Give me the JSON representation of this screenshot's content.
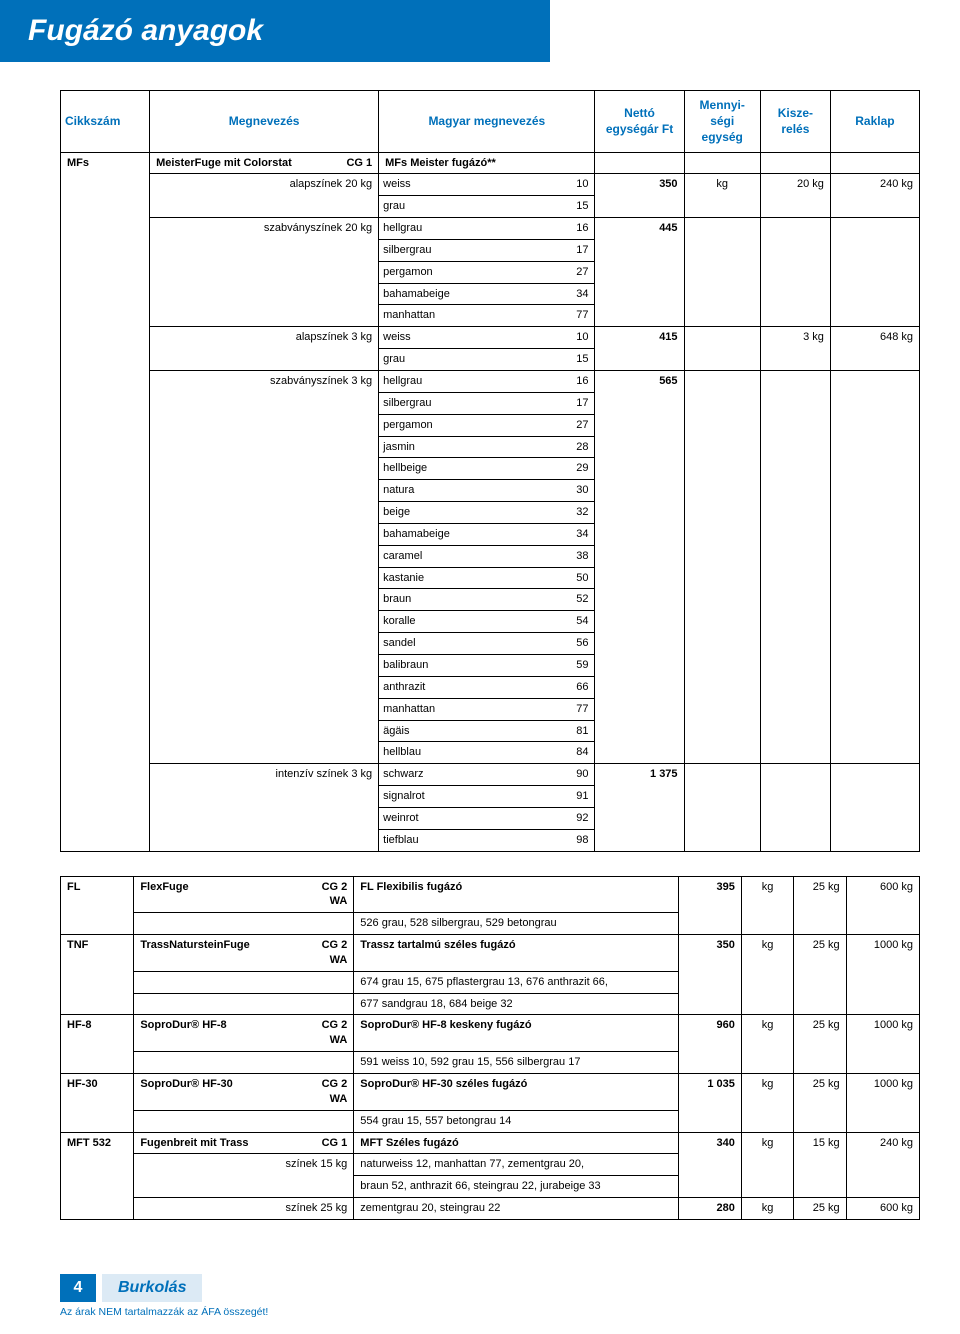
{
  "title": "Fugázó anyagok",
  "headers": {
    "cikkszam": "Cikkszám",
    "megnevezes": "Megnevezés",
    "magyar": "Magyar megnevezés",
    "netto": "Nettó egységár Ft",
    "mennyiseg": "Mennyi-ségi egység",
    "kiszereles": "Kisze-relés",
    "raklap": "Raklap"
  },
  "table1": {
    "code": "MFs",
    "nameA": "MeisterFuge mit Colorstat",
    "nameB": "CG 1",
    "huName": "MFs Meister fugázó**",
    "groups": [
      {
        "label": "alapszínek 20 kg",
        "price": "350",
        "unit": "kg",
        "pack": "20 kg",
        "pallet": "240 kg",
        "rows": [
          {
            "name": "weiss",
            "num": "10"
          },
          {
            "name": "grau",
            "num": "15"
          }
        ]
      },
      {
        "label": "szabványszínek 20 kg",
        "price": "445",
        "unit": "",
        "pack": "",
        "pallet": "",
        "rows": [
          {
            "name": "hellgrau",
            "num": "16"
          },
          {
            "name": "silbergrau",
            "num": "17"
          },
          {
            "name": "pergamon",
            "num": "27"
          },
          {
            "name": "bahamabeige",
            "num": "34"
          },
          {
            "name": "manhattan",
            "num": "77"
          }
        ]
      },
      {
        "label": "alapszínek 3 kg",
        "price": "415",
        "unit": "",
        "pack": "3 kg",
        "pallet": "648 kg",
        "rows": [
          {
            "name": "weiss",
            "num": "10"
          },
          {
            "name": "grau",
            "num": "15"
          }
        ]
      },
      {
        "label": "szabványszínek 3 kg",
        "price": "565",
        "unit": "",
        "pack": "",
        "pallet": "",
        "rows": [
          {
            "name": "hellgrau",
            "num": "16"
          },
          {
            "name": "silbergrau",
            "num": "17"
          },
          {
            "name": "pergamon",
            "num": "27"
          },
          {
            "name": "jasmin",
            "num": "28"
          },
          {
            "name": "hellbeige",
            "num": "29"
          },
          {
            "name": "natura",
            "num": "30"
          },
          {
            "name": "beige",
            "num": "32"
          },
          {
            "name": "bahamabeige",
            "num": "34"
          },
          {
            "name": "caramel",
            "num": "38"
          },
          {
            "name": "kastanie",
            "num": "50"
          },
          {
            "name": "braun",
            "num": "52"
          },
          {
            "name": "koralle",
            "num": "54"
          },
          {
            "name": "sandel",
            "num": "56"
          },
          {
            "name": "balibraun",
            "num": "59"
          },
          {
            "name": "anthrazit",
            "num": "66"
          },
          {
            "name": "manhattan",
            "num": "77"
          },
          {
            "name": "ägäis",
            "num": "81"
          },
          {
            "name": "hellblau",
            "num": "84"
          }
        ]
      },
      {
        "label": "intenzív színek 3 kg",
        "price": "1 375",
        "unit": "",
        "pack": "",
        "pallet": "",
        "rows": [
          {
            "name": "schwarz",
            "num": "90"
          },
          {
            "name": "signalrot",
            "num": "91"
          },
          {
            "name": "weinrot",
            "num": "92"
          },
          {
            "name": "tiefblau",
            "num": "98"
          }
        ]
      }
    ]
  },
  "table2": {
    "rows": [
      {
        "code": "FL",
        "name": "FlexFuge",
        "cg": "CG 2 WA",
        "hu": [
          "FL Flexibilis fugázó",
          "526 grau, 528 silbergrau, 529 betongrau"
        ],
        "price": "395",
        "unit": "kg",
        "pack": "25 kg",
        "pallet": "600 kg"
      },
      {
        "code": "TNF",
        "name": "TrassNatursteinFuge",
        "cg": "CG 2 WA",
        "hu": [
          "Trassz tartalmú széles fugázó",
          "674 grau 15, 675 pflastergrau 13, 676 anthrazit 66,",
          "677 sandgrau 18, 684 beige 32"
        ],
        "price": "350",
        "unit": "kg",
        "pack": "25 kg",
        "pallet": "1000 kg"
      },
      {
        "code": "HF-8",
        "name": "SoproDur® HF-8",
        "cg": "CG 2 WA",
        "hu": [
          "SoproDur® HF-8 keskeny fugázó",
          "591 weiss 10, 592 grau 15, 556 silbergrau 17"
        ],
        "price": "960",
        "unit": "kg",
        "pack": "25 kg",
        "pallet": "1000 kg"
      },
      {
        "code": "HF-30",
        "name": "SoproDur® HF-30",
        "cg": "CG 2 WA",
        "hu": [
          "SoproDur® HF-30 széles fugázó",
          "554 grau 15, 557 betongrau 14"
        ],
        "price": "1 035",
        "unit": "kg",
        "pack": "25 kg",
        "pallet": "1000 kg"
      },
      {
        "code": "MFT 532",
        "name": "Fugenbreit mit Trass",
        "cg": "CG 1",
        "hu": [
          "MFT Széles fugázó"
        ],
        "sublabel": "színek 15 kg",
        "subhu": [
          "naturweiss 12, manhattan 77, zementgrau 20,",
          "braun 52, anthrazit 66, steingrau 22, jurabeige 33"
        ],
        "price": "340",
        "unit": "kg",
        "pack": "15 kg",
        "pallet": "240 kg",
        "extra": {
          "sublabel": "színek 25 kg",
          "hu": "zementgrau 20, steingrau 22",
          "price": "280",
          "unit": "kg",
          "pack": "25 kg",
          "pallet": "600 kg"
        }
      }
    ]
  },
  "footer": {
    "page": "4",
    "section": "Burkolás",
    "disclaimer": "Az árak NEM tartalmazzák az ÁFA összegét!"
  },
  "colors": {
    "brand": "#0070ba",
    "light": "#dceaf5",
    "border": "#000000",
    "bg": "#ffffff"
  }
}
